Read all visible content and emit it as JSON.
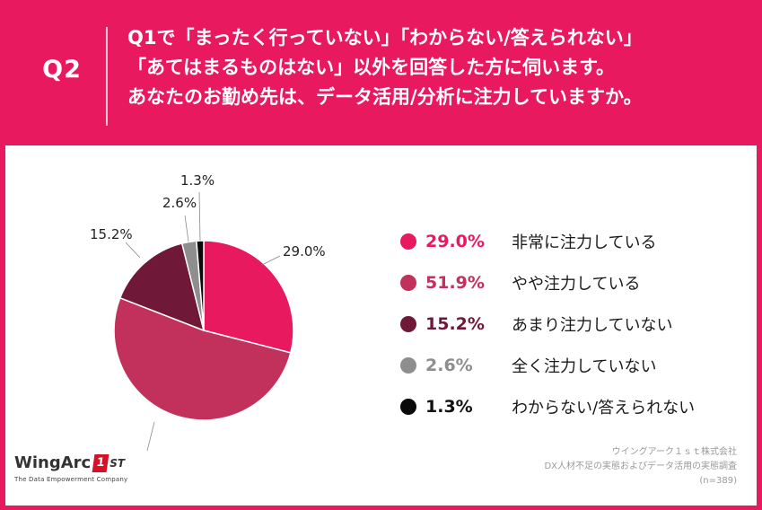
{
  "header": {
    "qnum": "Q2",
    "lines": [
      "Q1で「まったく行っていない」「わからない/答えられない」",
      "「あてはまるものはない」以外を回答した方に伺います。",
      "あなたのお勤め先は、データ活用/分析に注力していますか。"
    ]
  },
  "chart_data": {
    "type": "pie",
    "title": "",
    "start": "12 o'clock",
    "direction": "clockwise",
    "slices": [
      {
        "label": "非常に注力している",
        "value": 29.0,
        "value_label": "29.0%",
        "color": "#e8195f"
      },
      {
        "label": "やや注力している",
        "value": 51.9,
        "value_label": "51.9%",
        "color": "#c2305c"
      },
      {
        "label": "あまり注力していない",
        "value": 15.2,
        "value_label": "15.2%",
        "color": "#701838"
      },
      {
        "label": "全く注力していない",
        "value": 2.6,
        "value_label": "2.6%",
        "color": "#8e8e8e"
      },
      {
        "label": "わからない/答えられない",
        "value": 1.3,
        "value_label": "1.3%",
        "color": "#0a0a0a"
      }
    ],
    "legend_position": "right"
  },
  "logo": {
    "main": "WingArc",
    "badge": "1",
    "st": "ST",
    "tagline": "The Data Empowerment Company"
  },
  "source": {
    "lines": [
      "ウイングアーク１ｓｔ株式会社",
      "DX人材不足の実態およびデータ活用の実態調査",
      "(n=389)"
    ]
  }
}
